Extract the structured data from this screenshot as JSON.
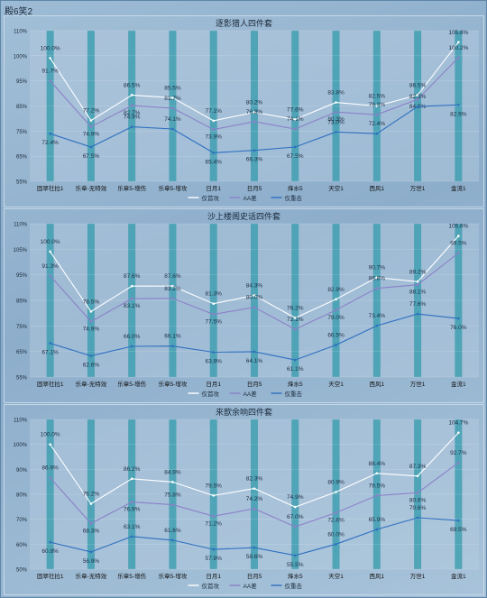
{
  "sheet_title": "殿6笑2",
  "chart_data": [
    {
      "type": "line",
      "title": "逐影猎人四件套",
      "categories": [
        "固翠社拉1",
        "乐章-无特效",
        "乐章5-增伤",
        "乐章5-增攻",
        "日月1",
        "日月5",
        "烽水5",
        "天空1",
        "西风1",
        "万世1",
        "金流1"
      ],
      "ylim": [
        55,
        110
      ],
      "yticks": [
        "55%",
        "65%",
        "75%",
        "85%",
        "95%",
        "100%",
        "110%"
      ],
      "series": [
        {
          "name": "仅首攻",
          "color": "#ffffff",
          "values": [
            100.0,
            77.2,
            86.5,
            85.5,
            77.1,
            80.2,
            77.6,
            83.8,
            82.5,
            86.5,
            105.8
          ]
        },
        {
          "name": "AA差",
          "color": "#8b80c8",
          "values": [
            91.7,
            74.9,
            82.7,
            81.7,
            73.9,
            76.8,
            74.1,
            80.3,
            79.3,
            84.9,
            100.2
          ]
        },
        {
          "name": "仅重击",
          "color": "#2e6fc0",
          "values": [
            72.4,
            67.5,
            74.9,
            74.1,
            65.4,
            66.3,
            67.5,
            73.0,
            72.4,
            82.3,
            82.9
          ]
        }
      ],
      "value_labels": [
        [
          "100.0%",
          "77.2%",
          "86.5%",
          "85.5%",
          "77.1%",
          "80.2%",
          "77.6%",
          "83.8%",
          "82.5%",
          "86.5%",
          "105.8%"
        ],
        [
          "91.7%",
          "74.9%",
          "82.7%",
          "81.7%",
          "73.9%",
          "76.8%",
          "74.1%",
          "80.3%",
          "79.3%",
          "84.9%",
          "100.2%"
        ],
        [
          "72.4%",
          "67.5%",
          "74.9%",
          "74.1%",
          "65.4%",
          "66.3%",
          "67.5%",
          "73.0%",
          "72.4%",
          "82.3%",
          "82.9%"
        ]
      ],
      "legend": "bottom-center"
    },
    {
      "type": "line",
      "title": "沙上楼阁史话四件套",
      "categories": [
        "固翠社拉1",
        "乐章-无特效",
        "乐章5-增伤",
        "乐章5-增攻",
        "日月1",
        "日月5",
        "烽水5",
        "天空1",
        "西风1",
        "万世1",
        "金流1"
      ],
      "ylim": [
        55,
        110
      ],
      "yticks": [
        "55%",
        "65%",
        "75%",
        "85%",
        "95%",
        "105%",
        "110%"
      ],
      "series": [
        {
          "name": "仅首攻",
          "color": "#ffffff",
          "values": [
            100.0,
            78.5,
            87.6,
            87.6,
            81.3,
            84.3,
            76.2,
            82.9,
            90.7,
            89.2,
            105.6
          ]
        },
        {
          "name": "AA差",
          "color": "#8b80c8",
          "values": [
            91.3,
            74.9,
            83.1,
            83.2,
            77.5,
            80.0,
            72.1,
            79.0,
            86.8,
            88.1,
            99.5
          ]
        },
        {
          "name": "仅重击",
          "color": "#2e6fc0",
          "values": [
            67.1,
            62.6,
            66.0,
            66.1,
            63.9,
            64.1,
            61.1,
            66.5,
            73.4,
            77.6,
            76.0
          ]
        }
      ],
      "value_labels": [
        [
          "100.0%",
          "78.5%",
          "87.6%",
          "87.6%",
          "81.3%",
          "84.3%",
          "76.2%",
          "82.9%",
          "90.7%",
          "89.2%",
          "105.6%"
        ],
        [
          "91.3%",
          "74.9%",
          "83.1%",
          "83.2%",
          "77.5%",
          "80.0%",
          "72.1%",
          "79.0%",
          "86.8%",
          "88.1%",
          "99.5%"
        ],
        [
          "67.1%",
          "62.6%",
          "66.0%",
          "66.1%",
          "63.9%",
          "64.1%",
          "61.1%",
          "66.5%",
          "73.4%",
          "77.6%",
          "76.0%"
        ]
      ],
      "legend": "bottom-center"
    },
    {
      "type": "line",
      "title": "来歆余响四件套",
      "categories": [
        "固翠社拉1",
        "乐章-无特效",
        "乐章5-增伤",
        "乐章5-增攻",
        "日月1",
        "日月5",
        "烽水5",
        "天空1",
        "西风1",
        "万世1",
        "金流1"
      ],
      "ylim": [
        50,
        110
      ],
      "yticks": [
        "50%",
        "60%",
        "70%",
        "80%",
        "90%",
        "100%",
        "110%"
      ],
      "series": [
        {
          "name": "仅首攻",
          "color": "#ffffff",
          "values": [
            100.0,
            76.2,
            86.2,
            84.9,
            79.5,
            82.3,
            74.9,
            80.9,
            88.4,
            87.3,
            104.7
          ]
        },
        {
          "name": "AA差",
          "color": "#8b80c8",
          "values": [
            86.6,
            68.3,
            76.9,
            75.8,
            71.2,
            74.2,
            67.0,
            72.6,
            79.5,
            80.6,
            92.7
          ]
        },
        {
          "name": "仅重击",
          "color": "#2e6fc0",
          "values": [
            60.8,
            56.9,
            63.1,
            61.6,
            57.9,
            58.6,
            55.5,
            60.0,
            65.9,
            70.6,
            69.5
          ]
        }
      ],
      "value_labels": [
        [
          "100.0%",
          "76.2%",
          "86.2%",
          "84.9%",
          "79.5%",
          "82.3%",
          "74.9%",
          "80.9%",
          "88.4%",
          "87.3%",
          "104.7%"
        ],
        [
          "86.6%",
          "68.3%",
          "76.9%",
          "75.8%",
          "71.2%",
          "74.2%",
          "67.0%",
          "72.6%",
          "79.5%",
          "80.6%",
          "92.7%"
        ],
        [
          "60.8%",
          "56.9%",
          "63.1%",
          "61.6%",
          "57.9%",
          "58.6%",
          "55.5%",
          "60.0%",
          "65.9%",
          "70.6%",
          "69.5%"
        ]
      ],
      "legend": "bottom-center"
    }
  ]
}
